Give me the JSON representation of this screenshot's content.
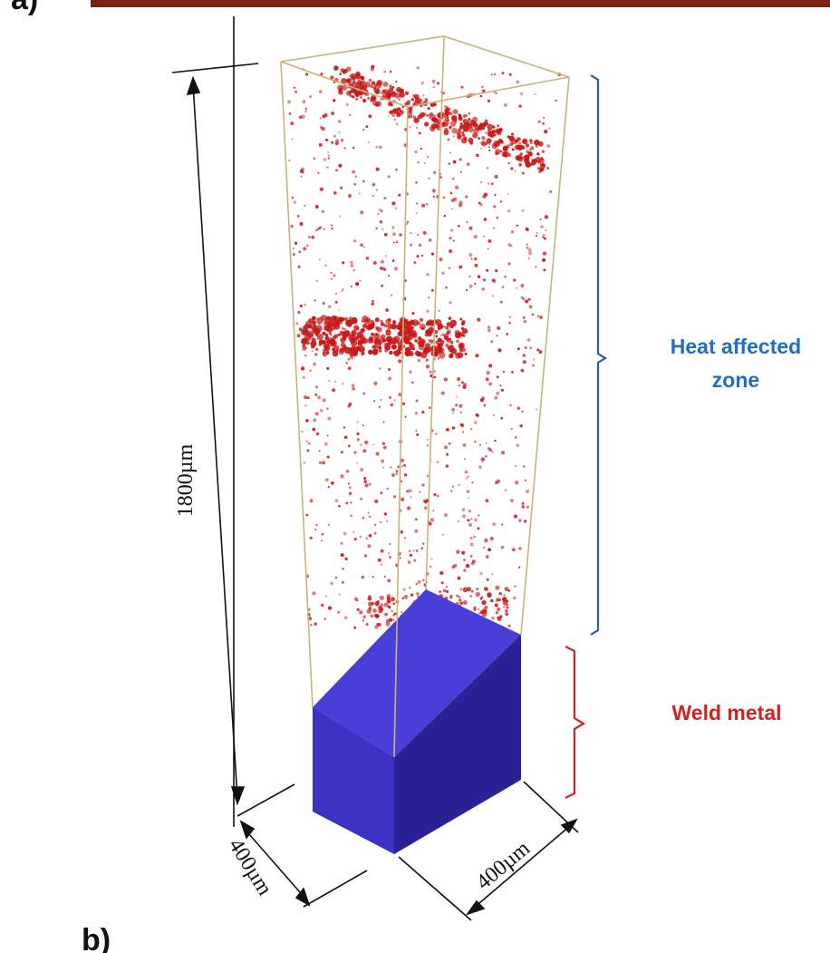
{
  "figure": {
    "panel_a_label": "a)",
    "panel_b_label": "b)",
    "dimension_height": "1800µm",
    "dimension_width_left": "400µm",
    "dimension_width_right": "400µm",
    "zones": [
      {
        "label_line1": "Heat affected",
        "label_line2": "zone",
        "color": "#1f6fc0"
      },
      {
        "label_line1": "Weld metal",
        "label_line2": "",
        "color": "#d42020"
      }
    ],
    "colors": {
      "bracket_haz": "#2e5aa8",
      "bracket_weld": "#d42020",
      "weld_block_top": "#4b3fd6",
      "weld_block_front": "#3a2fbf",
      "weld_block_side": "#2a2190",
      "particles": "#c81818",
      "box_edges": "#c9b27a",
      "top_strip": "#7a2418"
    }
  }
}
